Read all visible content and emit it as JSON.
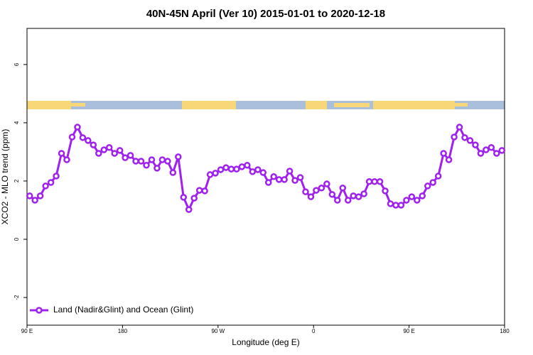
{
  "chart_data": {
    "type": "line",
    "title": "40N-45N April (Ver 10)   2015-01-01 to 2020-12-18",
    "xlabel": "Longitude (deg E)",
    "ylabel": "XCO2 - MLO trend (ppm)",
    "x": [
      92.5,
      97.5,
      102.5,
      107.5,
      112.5,
      117.5,
      122.5,
      127.5,
      132.5,
      137.5,
      142.5,
      147.5,
      152.5,
      157.5,
      162.5,
      167.5,
      172.5,
      177.5,
      182.5,
      187.5,
      192.5,
      197.5,
      202.5,
      207.5,
      212.5,
      217.5,
      222.5,
      227.5,
      232.5,
      237.5,
      242.5,
      247.5,
      252.5,
      257.5,
      262.5,
      267.5,
      272.5,
      277.5,
      282.5,
      287.5,
      292.5,
      297.5,
      302.5,
      307.5,
      312.5,
      317.5,
      322.5,
      327.5,
      332.5,
      337.5,
      342.5,
      347.5,
      352.5,
      357.5,
      362.5,
      367.5,
      372.5,
      377.5,
      382.5,
      387.5,
      392.5,
      397.5,
      402.5,
      407.5,
      412.5,
      417.5,
      422.5,
      427.5,
      432.5,
      437.5,
      442.5,
      447.5,
      452.5,
      457.5,
      462.5,
      467.5,
      472.5,
      477.5,
      482.5,
      487.5,
      492.5,
      497.5,
      502.5,
      507.5,
      512.5,
      517.5,
      522.5,
      527.5,
      532.5,
      537.5
    ],
    "series": [
      {
        "name": "Land (Nadir&Glint) and Ocean (Glint)",
        "color": "#a020f0",
        "values": [
          1.49,
          1.34,
          1.49,
          1.83,
          1.95,
          2.17,
          2.95,
          2.73,
          3.51,
          3.85,
          3.49,
          3.39,
          3.24,
          2.95,
          3.07,
          3.15,
          2.95,
          3.05,
          2.8,
          2.88,
          2.68,
          2.68,
          2.54,
          2.73,
          2.44,
          2.73,
          2.68,
          2.29,
          2.83,
          1.44,
          1.02,
          1.41,
          1.68,
          1.66,
          2.22,
          2.27,
          2.39,
          2.46,
          2.41,
          2.41,
          2.49,
          2.54,
          2.32,
          2.39,
          2.29,
          1.95,
          2.15,
          2.05,
          2.05,
          2.34,
          2.02,
          2.12,
          1.63,
          1.46,
          1.68,
          1.76,
          1.9,
          1.54,
          1.34,
          1.76,
          1.34,
          1.49,
          1.46,
          1.56,
          1.98,
          1.98,
          1.98,
          1.66,
          1.22,
          1.17,
          1.17,
          1.34,
          1.46,
          1.34,
          1.49,
          1.83,
          1.95,
          2.17,
          2.95,
          2.73,
          3.51,
          3.85,
          3.49,
          3.39,
          3.24,
          2.95,
          3.07,
          3.15,
          2.95,
          3.05
        ]
      }
    ],
    "xlim": [
      90,
      540
    ],
    "xticks": [
      {
        "value": 90,
        "label": "90 E"
      },
      {
        "value": 180,
        "label": "180"
      },
      {
        "value": 270,
        "label": "90 W"
      },
      {
        "value": 360,
        "label": "0"
      },
      {
        "value": 450,
        "label": "90 E"
      },
      {
        "value": 540,
        "label": "180"
      }
    ],
    "ylim": [
      -2.95,
      7.24
    ],
    "yticks": [
      -2,
      0,
      2,
      4,
      6
    ],
    "legend": "bottom-left"
  }
}
